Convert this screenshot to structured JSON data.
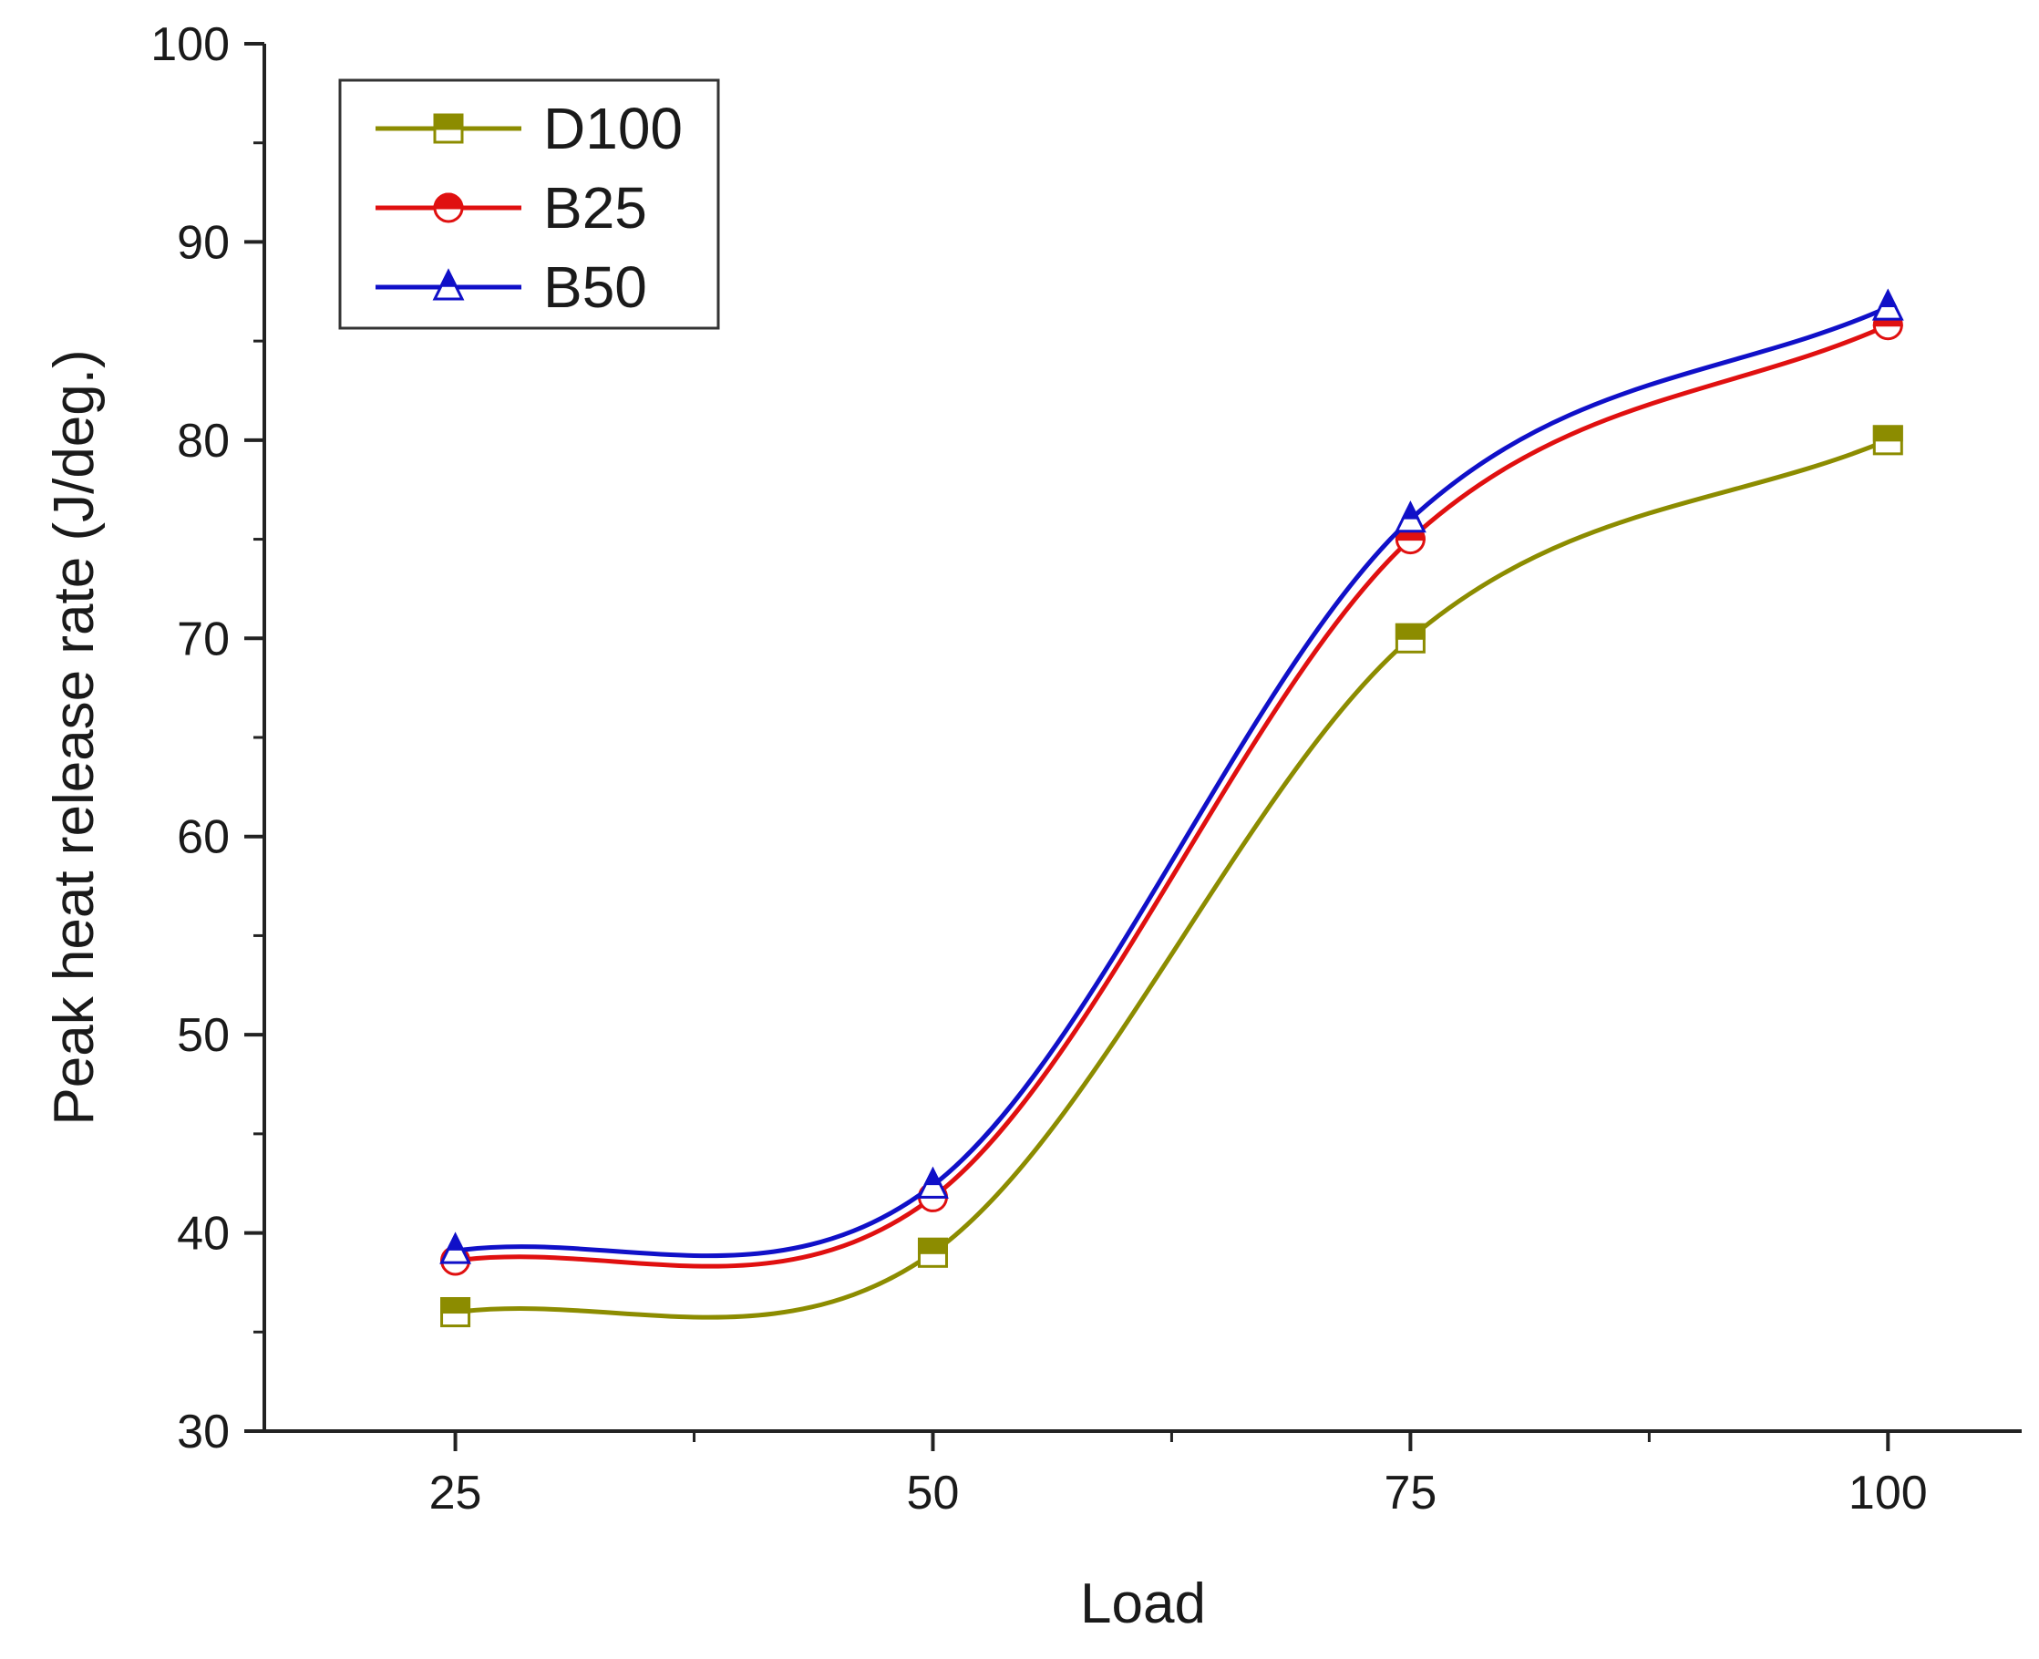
{
  "chart_data": {
    "type": "line",
    "title": "",
    "xlabel": "Load",
    "ylabel": "Peak heat release rate (J/deg.)",
    "x": [
      25,
      50,
      75,
      100
    ],
    "xlim": [
      15,
      107
    ],
    "ylim": [
      30,
      100
    ],
    "xticks": [
      25,
      50,
      75,
      100
    ],
    "yticks": [
      30,
      40,
      50,
      60,
      70,
      80,
      90,
      100
    ],
    "grid": false,
    "legend_position": "top-left",
    "series": [
      {
        "name": "D100",
        "values": [
          36,
          39,
          70,
          80
        ],
        "color": "#8c8c00",
        "marker": "square"
      },
      {
        "name": "B25",
        "values": [
          38.6,
          41.8,
          75,
          85.8
        ],
        "color": "#e01010",
        "marker": "circle"
      },
      {
        "name": "B50",
        "values": [
          39.1,
          42.4,
          76,
          86.7
        ],
        "color": "#1010c8",
        "marker": "triangle"
      }
    ]
  }
}
